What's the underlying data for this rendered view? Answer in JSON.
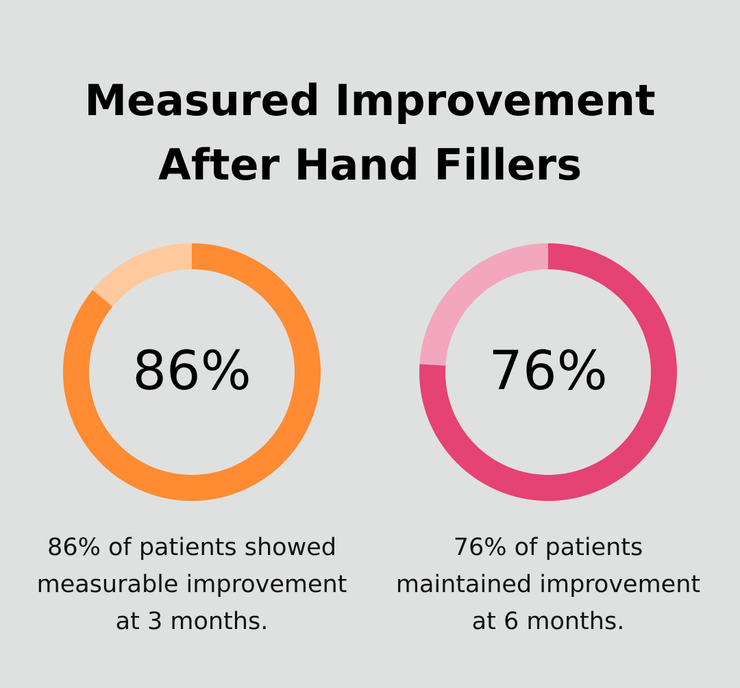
{
  "title_line1": "Measured Improvement",
  "title_line2": "After Hand Fillers",
  "chart_data": [
    {
      "type": "pie",
      "style": "donut",
      "value": 86,
      "remainder": 14,
      "label": "86%",
      "caption": "86% of patients showed measurable improvement at 3 months.",
      "color": "#ff8b33",
      "remainder_color": "#ffc99e"
    },
    {
      "type": "pie",
      "style": "donut",
      "value": 76,
      "remainder": 24,
      "label": "76%",
      "caption": "76% of patients maintained improvement at 6 months.",
      "color": "#e44374",
      "remainder_color": "#f2a7be"
    }
  ],
  "captions": [
    [
      "86% of patients showed",
      "measurable improvement",
      "at 3 months."
    ],
    [
      "76% of patients",
      "maintained improvement",
      "at 6 months."
    ]
  ]
}
